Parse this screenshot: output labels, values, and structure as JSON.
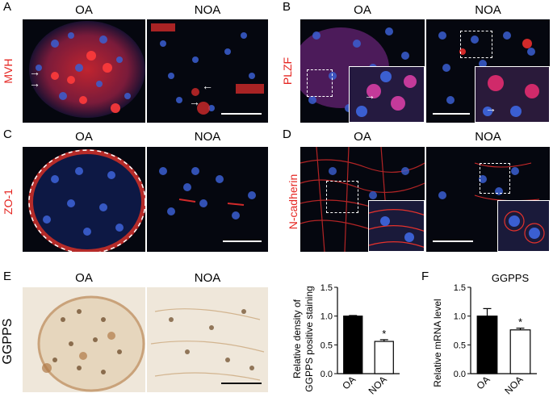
{
  "panels": {
    "A": {
      "letter": "A",
      "row_label": "MVH",
      "col_left": "OA",
      "col_right": "NOA"
    },
    "B": {
      "letter": "B",
      "row_label": "PLZF",
      "col_left": "OA",
      "col_right": "NOA"
    },
    "C": {
      "letter": "C",
      "row_label": "ZO-1",
      "col_left": "OA",
      "col_right": "NOA"
    },
    "D": {
      "letter": "D",
      "row_label": "N-cadherin",
      "col_left": "OA",
      "col_right": "NOA"
    },
    "E": {
      "letter": "E",
      "row_label": "GGPPS",
      "col_left": "OA",
      "col_right": "NOA"
    },
    "F": {
      "letter": "F"
    }
  },
  "arrow_glyph": "→",
  "arrow_glyph_left": "←",
  "colors": {
    "stain_red": "#e52521",
    "nuclei_blue": "#3b5fd1",
    "ihc_bg": "#efe7da",
    "ihc_brown": "#b07a48"
  },
  "chart_data": [
    {
      "type": "bar",
      "categories": [
        "OA",
        "NOA"
      ],
      "values": [
        1.0,
        0.56
      ],
      "errors": [
        0.01,
        0.03
      ],
      "significance": [
        "",
        "*"
      ],
      "ylabel": "Relative  density of GGPPS positive staining",
      "ylim": [
        0.0,
        1.5
      ],
      "yticks": [
        "0.0",
        "0.5",
        "1.0",
        "1.5"
      ],
      "bar_fill": [
        "#000000",
        "#ffffff"
      ],
      "title": ""
    },
    {
      "type": "bar",
      "categories": [
        "OA",
        "NOA"
      ],
      "values": [
        1.0,
        0.76
      ],
      "errors": [
        0.13,
        0.03
      ],
      "significance": [
        "",
        "*"
      ],
      "ylabel": "Relative mRNA level",
      "ylim": [
        0.0,
        1.5
      ],
      "yticks": [
        "0.0",
        "0.5",
        "1.0",
        "1.5"
      ],
      "bar_fill": [
        "#000000",
        "#ffffff"
      ],
      "title": "GGPPS"
    }
  ]
}
